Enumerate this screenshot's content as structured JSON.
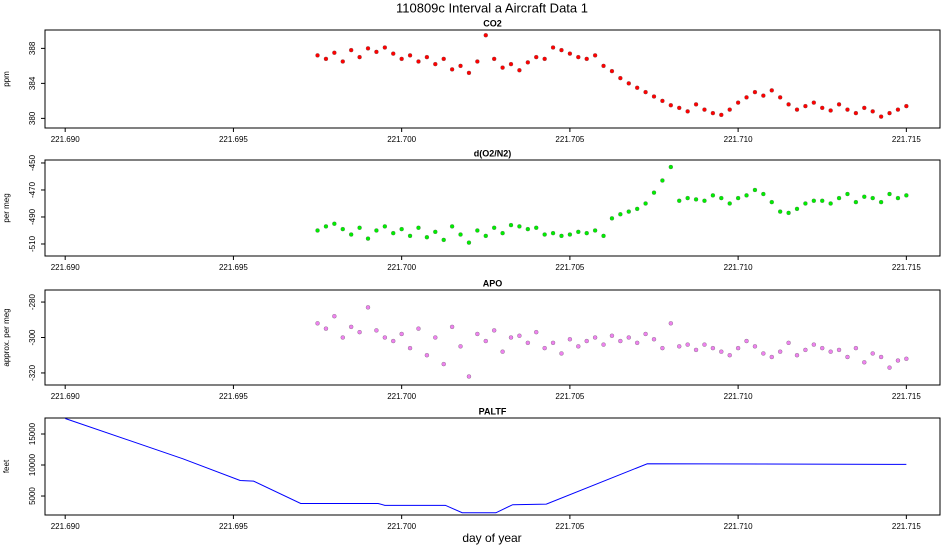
{
  "page_title": "110809c   Interval a Aircraft Data 1",
  "x_label": "day of year",
  "chart_data": [
    {
      "type": "scatter",
      "title": "CO2",
      "ylabel": "ppm",
      "color": "#ff0000",
      "x": [
        221.6975,
        221.69775,
        221.698,
        221.69825,
        221.6985,
        221.69875,
        221.699,
        221.69925,
        221.6995,
        221.69975,
        221.7,
        221.70025,
        221.7005,
        221.70075,
        221.701,
        221.70125,
        221.7015,
        221.70175,
        221.702,
        221.70225,
        221.7025,
        221.70275,
        221.703,
        221.70325,
        221.7035,
        221.70375,
        221.704,
        221.70425,
        221.7045,
        221.70475,
        221.705,
        221.70525,
        221.7055,
        221.70575,
        221.706,
        221.70625,
        221.7065,
        221.70675,
        221.707,
        221.70725,
        221.7075,
        221.70775,
        221.708,
        221.70825,
        221.7085,
        221.70875,
        221.709,
        221.70925,
        221.7095,
        221.70975,
        221.71,
        221.71025,
        221.7105,
        221.71075,
        221.711,
        221.71125,
        221.7115,
        221.71175,
        221.712,
        221.71225,
        221.7125,
        221.71275,
        221.713,
        221.71325,
        221.7135,
        221.71375,
        221.714,
        221.71425,
        221.7145,
        221.71475,
        221.715
      ],
      "values": [
        387.2,
        386.8,
        387.5,
        386.5,
        387.8,
        387.0,
        388.0,
        387.6,
        388.1,
        387.4,
        386.8,
        387.2,
        386.5,
        387.0,
        386.2,
        386.8,
        385.6,
        386.0,
        385.2,
        386.5,
        389.5,
        386.8,
        385.8,
        386.2,
        385.5,
        386.4,
        387.0,
        386.8,
        388.1,
        387.8,
        387.4,
        387.0,
        386.8,
        387.2,
        386.0,
        385.4,
        384.6,
        384.0,
        383.5,
        383.0,
        382.5,
        382.0,
        381.5,
        381.2,
        380.8,
        381.6,
        381.0,
        380.6,
        380.4,
        381.0,
        381.8,
        382.4,
        383.0,
        382.6,
        383.2,
        382.4,
        381.6,
        381.0,
        381.4,
        381.8,
        381.2,
        380.9,
        381.6,
        381.0,
        380.6,
        381.2,
        380.8,
        380.2,
        380.6,
        381.0,
        381.4
      ],
      "xlim": [
        221.6894,
        221.716
      ],
      "ylim": [
        378.9,
        390.1
      ],
      "xticks": [
        {
          "value": 221.69,
          "label": "221.690"
        },
        221.695,
        {
          "value": 221.7,
          "label": "221.700"
        },
        221.705,
        {
          "value": 221.71,
          "label": "221.710"
        },
        221.715
      ],
      "yticks": [
        380,
        384,
        388
      ]
    },
    {
      "type": "scatter",
      "title": "d(O2/N2)",
      "ylabel": "per meg",
      "color": "#00ee00",
      "x": [
        221.6975,
        221.69775,
        221.698,
        221.69825,
        221.6985,
        221.69875,
        221.699,
        221.69925,
        221.6995,
        221.69975,
        221.7,
        221.70025,
        221.7005,
        221.70075,
        221.701,
        221.70125,
        221.7015,
        221.70175,
        221.702,
        221.70225,
        221.7025,
        221.70275,
        221.703,
        221.70325,
        221.7035,
        221.70375,
        221.704,
        221.70425,
        221.7045,
        221.70475,
        221.705,
        221.70525,
        221.7055,
        221.70575,
        221.706,
        221.70625,
        221.7065,
        221.70675,
        221.707,
        221.70725,
        221.7075,
        221.70775,
        221.708,
        221.70825,
        221.7085,
        221.70875,
        221.709,
        221.70925,
        221.7095,
        221.70975,
        221.71,
        221.71025,
        221.7105,
        221.71075,
        221.711,
        221.71125,
        221.7115,
        221.71175,
        221.712,
        221.71225,
        221.7125,
        221.71275,
        221.713,
        221.71325,
        221.7135,
        221.71375,
        221.714,
        221.71425,
        221.7145,
        221.71475,
        221.715
      ],
      "values": [
        -500,
        -497,
        -495,
        -499,
        -503,
        -498,
        -506,
        -500,
        -497,
        -502,
        -499,
        -504,
        -498,
        -505,
        -501,
        -507,
        -497,
        -503,
        -509,
        -500,
        -504,
        -498,
        -502,
        -496,
        -497,
        -499,
        -498,
        -503,
        -502,
        -504,
        -503,
        -501,
        -502,
        -500,
        -504,
        -491,
        -488,
        -486,
        -484,
        -480,
        -472,
        -463,
        -453,
        -478,
        -476,
        -477,
        -478,
        -474,
        -476,
        -480,
        -476,
        -474,
        -470,
        -473,
        -479,
        -486,
        -487,
        -484,
        -480,
        -478,
        -478,
        -480,
        -476,
        -473,
        -479,
        -475,
        -476,
        -479,
        -473,
        -476,
        -474
      ],
      "xlim": [
        221.6894,
        221.716
      ],
      "ylim": [
        -518.9,
        -447.8
      ],
      "xticks": [
        {
          "value": 221.69,
          "label": "221.690"
        },
        221.695,
        {
          "value": 221.7,
          "label": "221.700"
        },
        221.705,
        {
          "value": 221.71,
          "label": "221.710"
        },
        221.715
      ],
      "yticks": [
        -510,
        -490,
        -470,
        -450
      ]
    },
    {
      "type": "scatter",
      "title": "APO",
      "ylabel": "approx. per meg",
      "color": "#ee82ee",
      "x": [
        221.6975,
        221.69775,
        221.698,
        221.69825,
        221.6985,
        221.69875,
        221.699,
        221.69925,
        221.6995,
        221.69975,
        221.7,
        221.70025,
        221.7005,
        221.70075,
        221.701,
        221.70125,
        221.7015,
        221.70175,
        221.702,
        221.70225,
        221.7025,
        221.70275,
        221.703,
        221.70325,
        221.7035,
        221.70375,
        221.704,
        221.70425,
        221.7045,
        221.70475,
        221.705,
        221.70525,
        221.7055,
        221.70575,
        221.706,
        221.70625,
        221.7065,
        221.70675,
        221.707,
        221.70725,
        221.7075,
        221.70775,
        221.708,
        221.70825,
        221.7085,
        221.70875,
        221.709,
        221.70925,
        221.7095,
        221.70975,
        221.71,
        221.71025,
        221.7105,
        221.71075,
        221.711,
        221.71125,
        221.7115,
        221.71175,
        221.712,
        221.71225,
        221.7125,
        221.71275,
        221.713,
        221.71325,
        221.7135,
        221.71375,
        221.714,
        221.71425,
        221.7145,
        221.71475,
        221.715
      ],
      "values": [
        -292,
        -295,
        -288,
        -300,
        -294,
        -297,
        -283,
        -296,
        -300,
        -302,
        -298,
        -306,
        -295,
        -310,
        -300,
        -315,
        -294,
        -305,
        -322,
        -298,
        -302,
        -296,
        -308,
        -300,
        -299,
        -303,
        -297,
        -306,
        -303,
        -309,
        -301,
        -305,
        -302,
        -300,
        -304,
        -299,
        -302,
        -300,
        -303,
        -298,
        -301,
        -306,
        -292,
        -305,
        -304,
        -307,
        -304,
        -306,
        -308,
        -310,
        -306,
        -302,
        -305,
        -309,
        -311,
        -308,
        -303,
        -310,
        -307,
        -304,
        -306,
        -308,
        -307,
        -311,
        -306,
        -314,
        -309,
        -311,
        -317,
        -313,
        -312
      ],
      "xlim": [
        221.6894,
        221.716
      ],
      "ylim": [
        -326.8,
        -273.2
      ],
      "xticks": [
        {
          "value": 221.69,
          "label": "221.690"
        },
        221.695,
        {
          "value": 221.7,
          "label": "221.700"
        },
        221.705,
        {
          "value": 221.71,
          "label": "221.710"
        },
        221.715
      ],
      "yticks": [
        -320,
        -300,
        -280
      ]
    },
    {
      "type": "line",
      "title": "PALTF",
      "ylabel": "feet",
      "color": "#0000ff",
      "x": [
        221.69,
        221.6935,
        221.6952,
        221.6956,
        221.697,
        221.6993,
        221.6995,
        221.7013,
        221.7018,
        221.7028,
        221.7033,
        221.7043,
        221.7073,
        221.715
      ],
      "values": [
        17500,
        11000,
        7500,
        7400,
        3800,
        3800,
        3500,
        3500,
        2300,
        2300,
        3600,
        3700,
        10200,
        10100
      ],
      "xlim": [
        221.6894,
        221.716
      ],
      "ylim": [
        1940,
        17580
      ],
      "xticks": [
        {
          "value": 221.69,
          "label": "221.690"
        },
        221.695,
        {
          "value": 221.7,
          "label": "221.700"
        },
        221.705,
        {
          "value": 221.71,
          "label": "221.710"
        },
        221.715
      ],
      "yticks": [
        5000,
        10000,
        15000
      ]
    }
  ]
}
